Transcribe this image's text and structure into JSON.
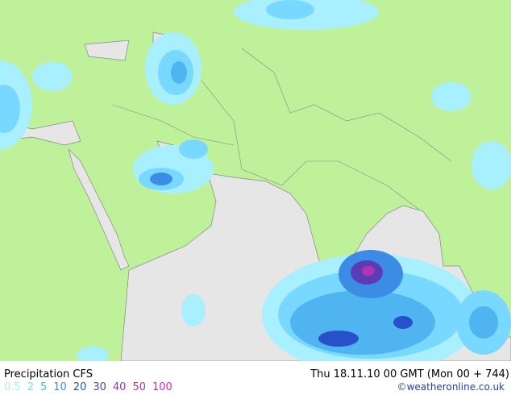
{
  "header": {
    "title": "Precipitation CFS",
    "valid_time": "Thu 18.11.10 00 GMT (Mon 00 + 744)"
  },
  "legend": [
    {
      "label": "0.5",
      "color": "#a8f0ff"
    },
    {
      "label": "2",
      "color": "#78d8ff"
    },
    {
      "label": "5",
      "color": "#50b4f0"
    },
    {
      "label": "10",
      "color": "#3c8ce6"
    },
    {
      "label": "20",
      "color": "#2850c8"
    },
    {
      "label": "30",
      "color": "#5a3cb4"
    },
    {
      "label": "40",
      "color": "#8c3cb4"
    },
    {
      "label": "50",
      "color": "#b432b4"
    },
    {
      "label": "100",
      "color": "#d228c8"
    }
  ],
  "credit": "©weatheronline.co.uk"
}
